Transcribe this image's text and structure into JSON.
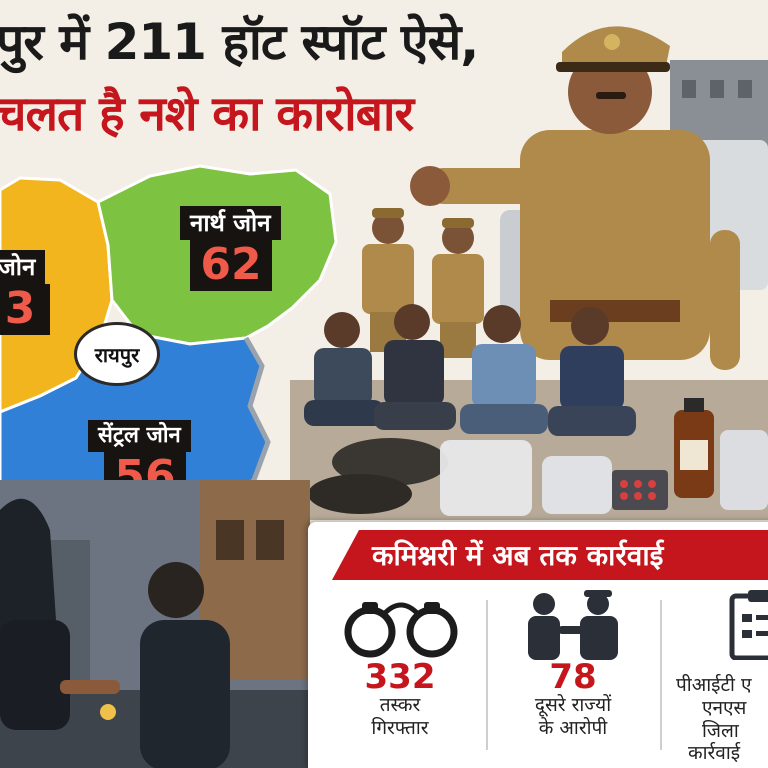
{
  "headline": {
    "line1": "पुर में 211 हॉट स्पॉट ऐसे,",
    "line2": "चलत है नशे का कारोबार"
  },
  "map": {
    "city": "रायपुर",
    "zones": {
      "north": {
        "label": "नार्थ जोन",
        "count": "62"
      },
      "west": {
        "label": "जोन",
        "count": "3"
      },
      "central": {
        "label": "सेंट्रल जोन",
        "count": "56"
      }
    }
  },
  "panel": {
    "title": "कमिश्नरी में अब तक कार्रवाई",
    "stats": [
      {
        "value": "332",
        "caption_line1": "तस्कर",
        "caption_line2": "गिरफ्तार",
        "icon": "handcuffs-icon"
      },
      {
        "value": "78",
        "caption_line1": "दूसरे राज्यों",
        "caption_line2": "के आरोपी",
        "icon": "police-arrest-icon"
      },
      {
        "value": "",
        "caption_line1": "पीआईटी ए",
        "caption_line2": "एनएस",
        "caption_line3": "जिला",
        "caption_line4": "कार्रवाई",
        "icon": "document-icon"
      }
    ]
  },
  "colors": {
    "north_zone": "#7ec242",
    "west_zone": "#f2b51e",
    "central_zone": "#2f80d6",
    "accent_red": "#c4161c",
    "uniform": "#b08a4a"
  }
}
